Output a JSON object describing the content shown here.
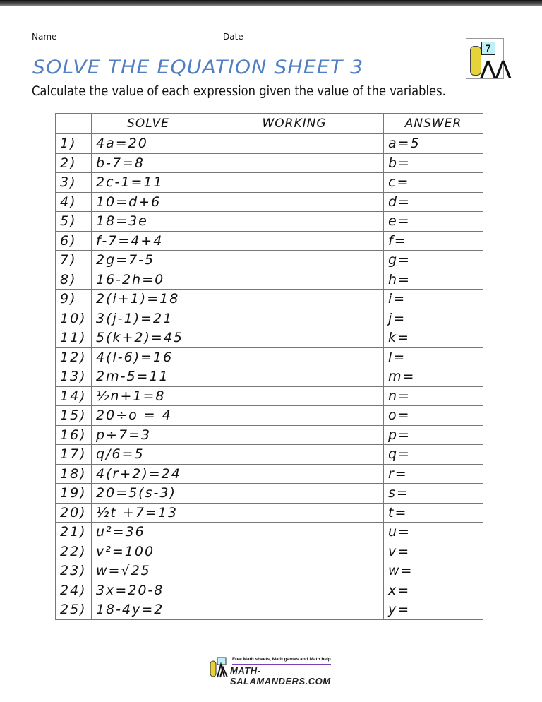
{
  "header": {
    "name_label": "Name",
    "date_label": "Date",
    "title": "SOLVE THE EQUATION SHEET 3",
    "instructions": "Calculate the value of each expression given the value of the variables.",
    "logo_number": "7"
  },
  "table": {
    "headers": [
      "",
      "SOLVE",
      "WORKING",
      "ANSWER"
    ],
    "rows": [
      {
        "num": "1)",
        "eq": "4a=20",
        "ans": "a=5"
      },
      {
        "num": "2)",
        "eq": "b-7=8",
        "ans": "b="
      },
      {
        "num": "3)",
        "eq": "2c-1=11",
        "ans": "c="
      },
      {
        "num": "4)",
        "eq": "10=d+6",
        "ans": "d="
      },
      {
        "num": "5)",
        "eq": "18=3e",
        "ans": "e="
      },
      {
        "num": "6)",
        "eq": "f-7=4+4",
        "ans": "f="
      },
      {
        "num": "7)",
        "eq": "2g=7-5",
        "ans": "g="
      },
      {
        "num": "8)",
        "eq": "16-2h=0",
        "ans": "h="
      },
      {
        "num": "9)",
        "eq": "2(i+1)=18",
        "ans": "i="
      },
      {
        "num": "10)",
        "eq": "3(j-1)=21",
        "ans": "j="
      },
      {
        "num": "11)",
        "eq": "5(k+2)=45",
        "ans": "k="
      },
      {
        "num": "12)",
        "eq": "4(l-6)=16",
        "ans": "l="
      },
      {
        "num": "13)",
        "eq": "2m-5=11",
        "ans": "m="
      },
      {
        "num": "14)",
        "eq": "½n+1=8",
        "ans": "n="
      },
      {
        "num": "15)",
        "eq": "20÷o = 4",
        "ans": "o="
      },
      {
        "num": "16)",
        "eq": "p÷7=3",
        "ans": "p="
      },
      {
        "num": "17)",
        "eq": "q/6=5",
        "ans": "q="
      },
      {
        "num": "18)",
        "eq": "4(r+2)=24",
        "ans": "r="
      },
      {
        "num": "19)",
        "eq": "20=5(s-3)",
        "ans": "s="
      },
      {
        "num": "20)",
        "eq": "½t +7=13",
        "ans": "t="
      },
      {
        "num": "21)",
        "eq": "u²=36",
        "ans": "u="
      },
      {
        "num": "22)",
        "eq": "v²=100",
        "ans": "v="
      },
      {
        "num": "23)",
        "eq": "w=√25",
        "ans": "w="
      },
      {
        "num": "24)",
        "eq": "3x=20-8",
        "ans": "x="
      },
      {
        "num": "25)",
        "eq": "18-4y=2",
        "ans": "y="
      }
    ]
  },
  "footer": {
    "tagline": "Free Math sheets, Math games and Math help",
    "site": "MATH-SALAMANDERS.COM"
  },
  "colors": {
    "title": "#4f7ec2",
    "footer_line": "#7a3fb0"
  }
}
